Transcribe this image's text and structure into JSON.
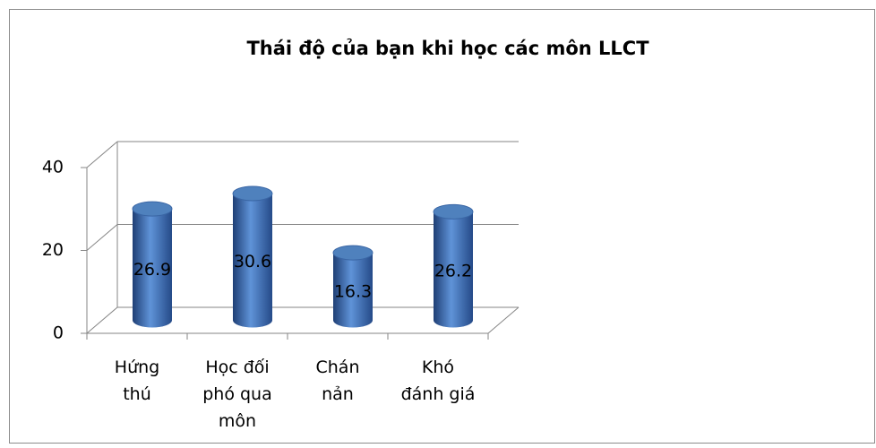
{
  "chart_data": {
    "type": "bar",
    "title": "Thái độ của bạn khi học các môn LLCT",
    "categories": [
      "Hứng\nthú",
      "Học đối\nphó qua\nmôn",
      "Chán\nnản",
      "Khó\nđánh giá"
    ],
    "values": [
      26.9,
      30.6,
      16.3,
      26.2
    ],
    "color": "#4f81bd",
    "ylim": [
      0,
      40
    ],
    "yticks": [
      0,
      20,
      40
    ],
    "grid": true
  }
}
